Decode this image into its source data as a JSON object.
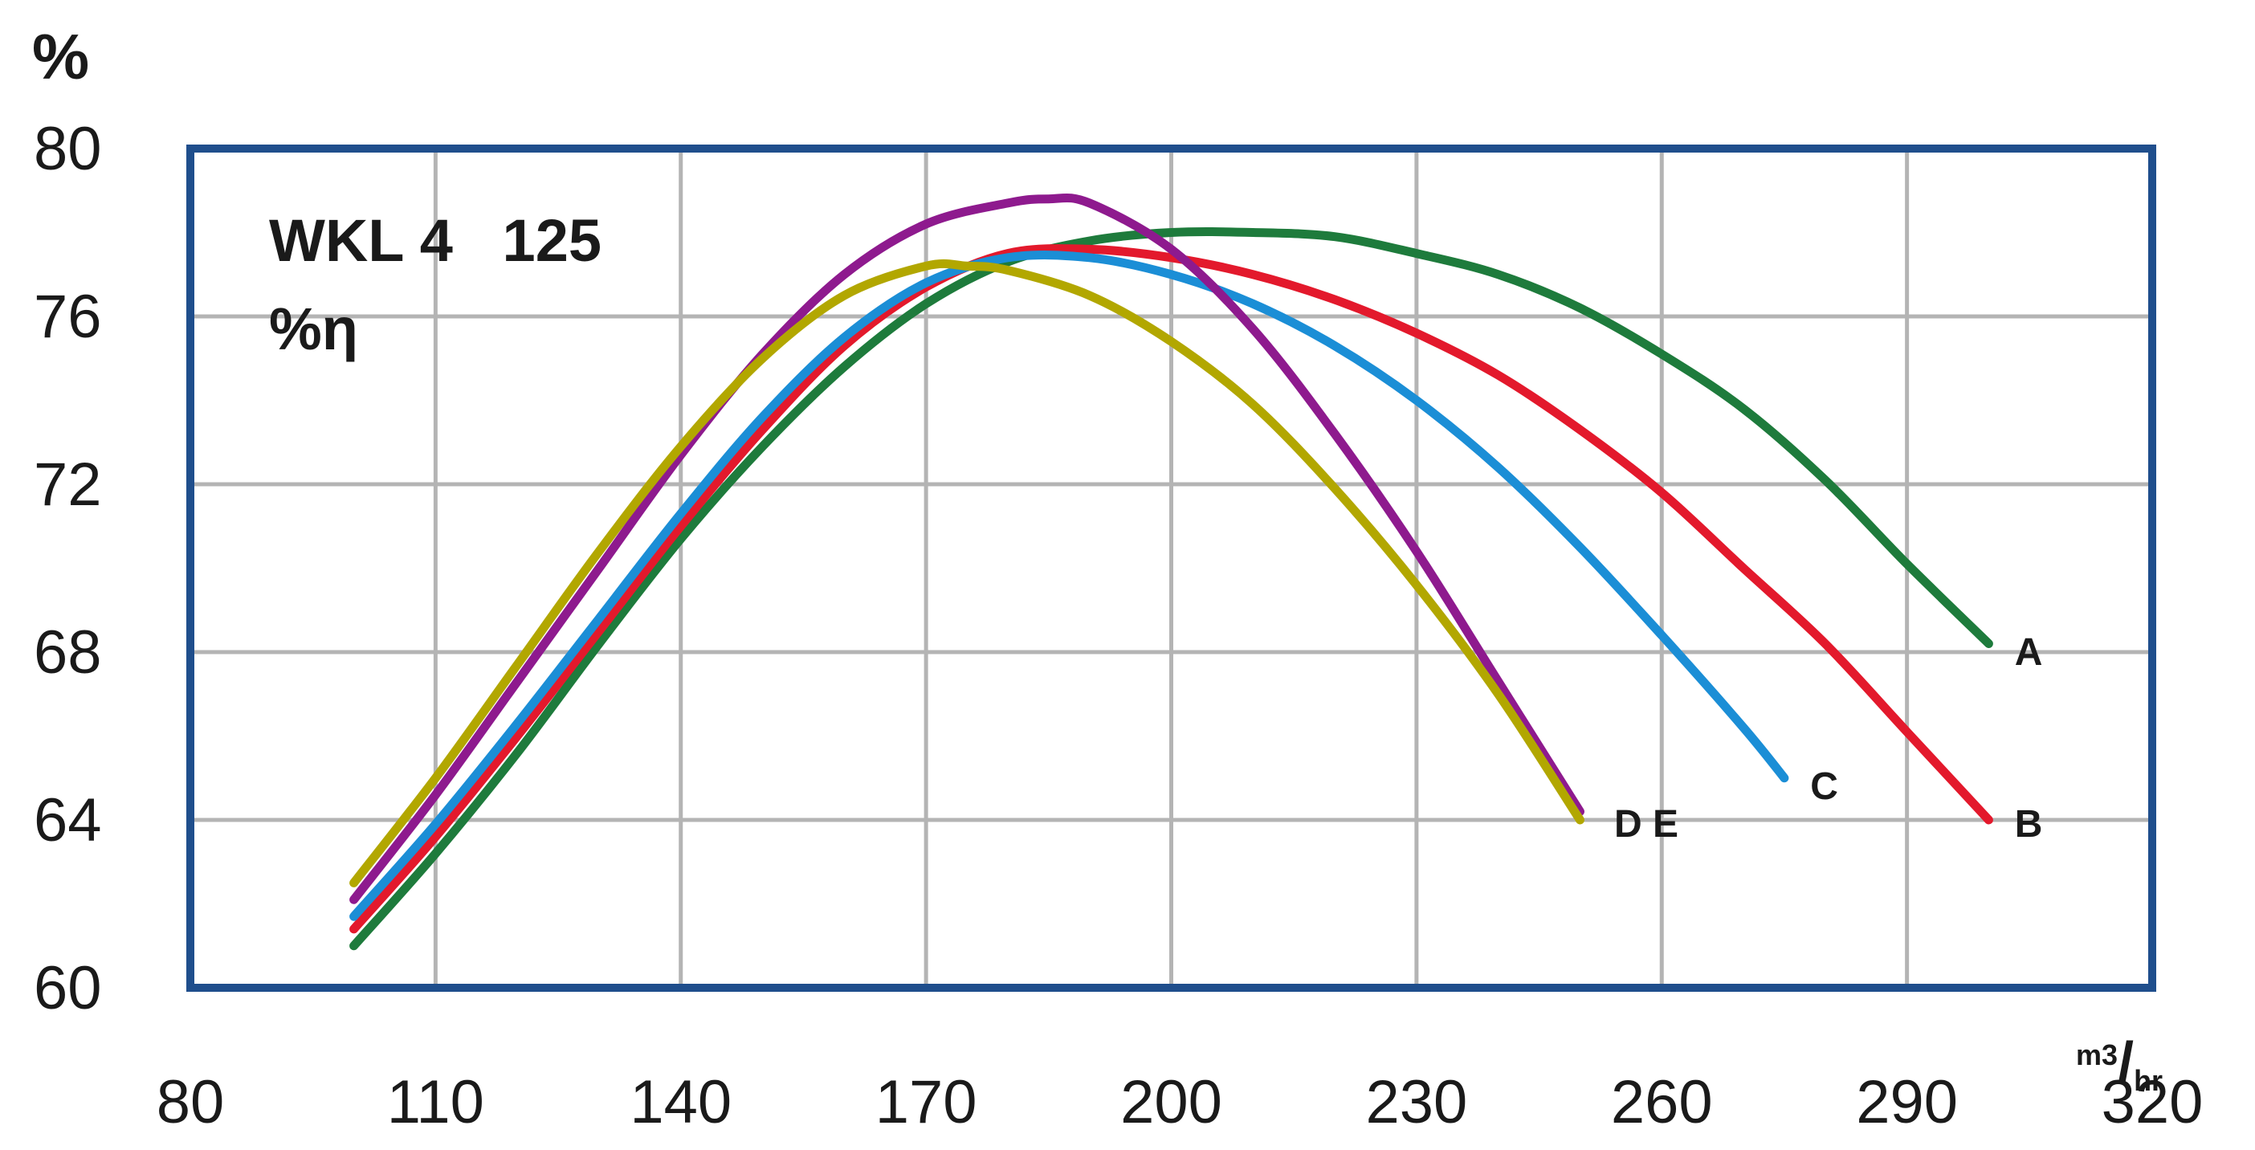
{
  "chart_data": {
    "type": "line",
    "title": "WKL 4   125",
    "subtitle": "%η",
    "ylabel": "%",
    "xlabel_unit": {
      "base": "m",
      "sup": "3",
      "slash": "/",
      "sub": "hr"
    },
    "xlim": [
      80,
      320
    ],
    "ylim": [
      60,
      80
    ],
    "x_ticks": [
      80,
      110,
      140,
      170,
      200,
      230,
      260,
      290,
      320
    ],
    "y_ticks": [
      60,
      64,
      68,
      72,
      76,
      80
    ],
    "grid": true,
    "colors": {
      "frame": "#1f4e8c",
      "grid": "#b4b4b4"
    },
    "series": [
      {
        "name": "A",
        "color": "#1e7b3c",
        "x": [
          100,
          110,
          120,
          130,
          140,
          150,
          160,
          170,
          180,
          190,
          200,
          210,
          220,
          230,
          240,
          250,
          260,
          270,
          280,
          290,
          300
        ],
        "y": [
          61.0,
          63.2,
          65.6,
          68.2,
          70.7,
          72.9,
          74.8,
          76.3,
          77.3,
          77.8,
          78.0,
          78.0,
          77.9,
          77.5,
          77.0,
          76.2,
          75.1,
          73.8,
          72.1,
          70.1,
          68.2
        ]
      },
      {
        "name": "B",
        "color": "#e3192c",
        "x": [
          100,
          110,
          120,
          130,
          140,
          150,
          160,
          170,
          180,
          190,
          200,
          210,
          220,
          230,
          240,
          250,
          260,
          270,
          280,
          290,
          300
        ],
        "y": [
          61.4,
          63.6,
          66.0,
          68.5,
          71.0,
          73.3,
          75.3,
          76.7,
          77.5,
          77.6,
          77.4,
          77.0,
          76.4,
          75.6,
          74.6,
          73.3,
          71.8,
          70.0,
          68.2,
          66.1,
          64.0
        ]
      },
      {
        "name": "C",
        "color": "#1b8ed6",
        "x": [
          100,
          110,
          120,
          130,
          140,
          150,
          160,
          170,
          180,
          190,
          200,
          210,
          220,
          230,
          240,
          250,
          260,
          270,
          275
        ],
        "y": [
          61.7,
          63.9,
          66.3,
          68.8,
          71.3,
          73.6,
          75.5,
          76.8,
          77.4,
          77.4,
          77.0,
          76.3,
          75.3,
          74.0,
          72.4,
          70.5,
          68.4,
          66.2,
          65.0
        ]
      },
      {
        "name": "D",
        "color": "#8e1a8e",
        "x": [
          100,
          110,
          120,
          130,
          140,
          150,
          160,
          170,
          180,
          185,
          190,
          200,
          210,
          220,
          230,
          240,
          250
        ],
        "y": [
          62.1,
          64.6,
          67.3,
          70.0,
          72.7,
          75.1,
          77.0,
          78.2,
          78.7,
          78.8,
          78.7,
          77.6,
          75.7,
          73.2,
          70.4,
          67.3,
          64.2
        ]
      },
      {
        "name": "E",
        "color": "#b2a700",
        "x": [
          100,
          110,
          120,
          130,
          140,
          150,
          160,
          170,
          175,
          180,
          190,
          200,
          210,
          220,
          230,
          240,
          250
        ],
        "y": [
          62.5,
          65.0,
          67.7,
          70.4,
          72.9,
          75.0,
          76.5,
          77.2,
          77.2,
          77.1,
          76.5,
          75.4,
          73.9,
          71.9,
          69.6,
          67.0,
          64.0
        ]
      }
    ],
    "curve_labels": [
      {
        "text": "A",
        "x": 302,
        "y": 68.0
      },
      {
        "text": "B",
        "x": 302,
        "y": 63.9
      },
      {
        "text": "C",
        "x": 277,
        "y": 64.8
      },
      {
        "text": "D E",
        "x": 253,
        "y": 63.9
      }
    ]
  }
}
